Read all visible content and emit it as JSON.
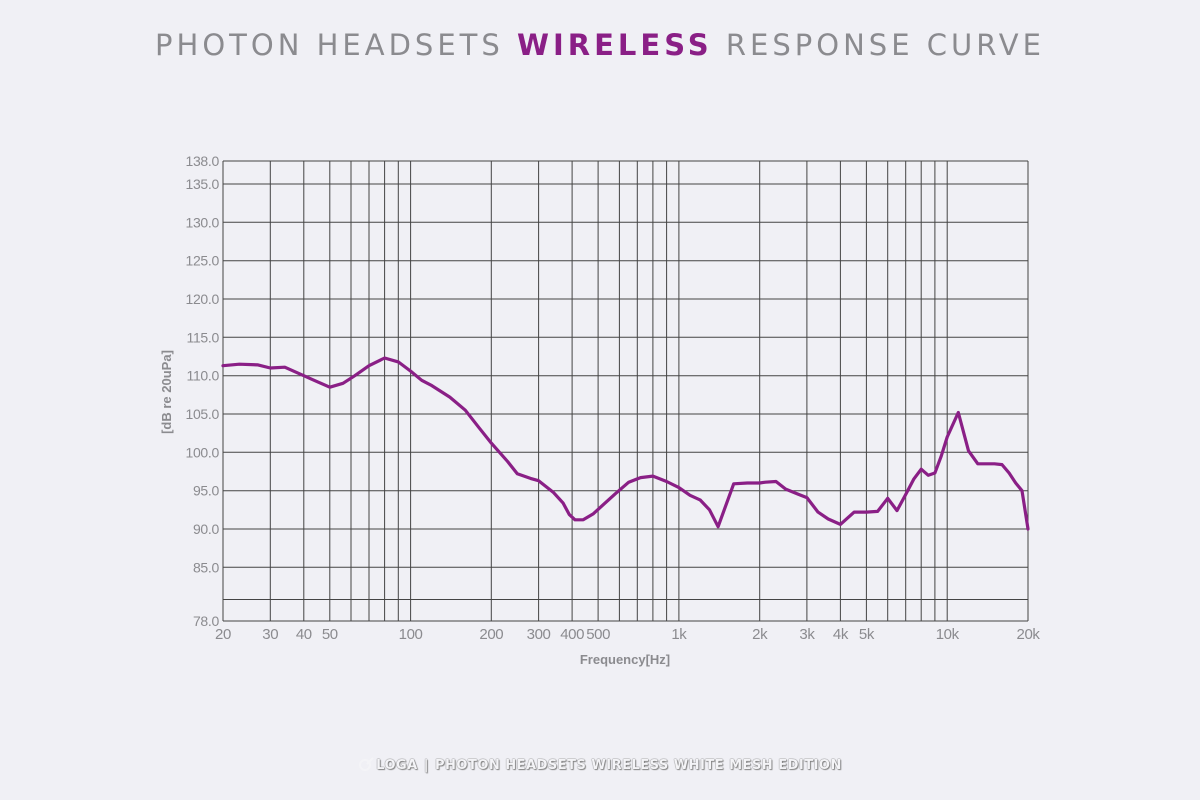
{
  "title": {
    "prefix": "PHOTON HEADSETS",
    "highlight": "WIRELESS",
    "suffix": "RESPONSE CURVE"
  },
  "footer": {
    "brand": "LOGA",
    "separator": "|",
    "text": "PHOTON HEADSETS WIRELESS WHITE MESH EDITION"
  },
  "colors": {
    "background": "#f0f0f5",
    "curve": "#8a1f86",
    "grid": "#444444",
    "text": "#8b8b8f"
  },
  "chart_data": {
    "type": "line",
    "title": "PHOTON HEADSETS WIRELESS RESPONSE CURVE",
    "xlabel": "Frequency[Hz]",
    "ylabel": "[dB re 20uPa]",
    "xscale": "log",
    "xlim": [
      20,
      20000
    ],
    "ylim": [
      78,
      138
    ],
    "grid": true,
    "x_ticks": [
      {
        "v": 20,
        "label": "20"
      },
      {
        "v": 30,
        "label": "30"
      },
      {
        "v": 40,
        "label": "40"
      },
      {
        "v": 50,
        "label": "50"
      },
      {
        "v": 100,
        "label": "100"
      },
      {
        "v": 200,
        "label": "200"
      },
      {
        "v": 300,
        "label": "300"
      },
      {
        "v": 400,
        "label": "400"
      },
      {
        "v": 500,
        "label": "500"
      },
      {
        "v": 1000,
        "label": "1k"
      },
      {
        "v": 2000,
        "label": "2k"
      },
      {
        "v": 3000,
        "label": "3k"
      },
      {
        "v": 4000,
        "label": "4k"
      },
      {
        "v": 5000,
        "label": "5k"
      },
      {
        "v": 10000,
        "label": "10k"
      },
      {
        "v": 20000,
        "label": "20k"
      }
    ],
    "y_ticks": [
      {
        "v": 78,
        "label": "78.0"
      },
      {
        "v": 85,
        "label": "85.0"
      },
      {
        "v": 90,
        "label": "90.0"
      },
      {
        "v": 95,
        "label": "95.0"
      },
      {
        "v": 100,
        "label": "100.0"
      },
      {
        "v": 105,
        "label": "105.0"
      },
      {
        "v": 110,
        "label": "110.0"
      },
      {
        "v": 115,
        "label": "115.0"
      },
      {
        "v": 120,
        "label": "120.0"
      },
      {
        "v": 125,
        "label": "125.0"
      },
      {
        "v": 130,
        "label": "130.0"
      },
      {
        "v": 135,
        "label": "135.0"
      },
      {
        "v": 138,
        "label": "138.0"
      }
    ],
    "extra_h_lines": [
      80.8
    ],
    "series": [
      {
        "name": "Photon Headsets Wireless",
        "x": [
          20,
          23,
          27,
          30,
          34,
          40,
          45,
          50,
          56,
          62,
          70,
          80,
          90,
          100,
          110,
          120,
          140,
          160,
          180,
          200,
          230,
          250,
          280,
          300,
          340,
          370,
          390,
          410,
          440,
          480,
          520,
          580,
          650,
          720,
          800,
          900,
          1000,
          1100,
          1200,
          1300,
          1400,
          1600,
          1800,
          2000,
          2100,
          2300,
          2500,
          2800,
          3000,
          3300,
          3600,
          4000,
          4500,
          5000,
          5500,
          6000,
          6500,
          7000,
          7500,
          8000,
          8500,
          9000,
          9500,
          10000,
          11000,
          12000,
          13000,
          14000,
          15000,
          16000,
          17000,
          18000,
          19000,
          20000
        ],
        "y": [
          111.3,
          111.5,
          111.4,
          111.0,
          111.1,
          110.0,
          109.2,
          108.5,
          109.0,
          110.0,
          111.3,
          112.3,
          111.8,
          110.6,
          109.4,
          108.7,
          107.2,
          105.5,
          103.2,
          101.2,
          98.8,
          97.2,
          96.6,
          96.3,
          94.8,
          93.4,
          91.9,
          91.2,
          91.2,
          92.0,
          93.1,
          94.6,
          96.1,
          96.7,
          96.9,
          96.2,
          95.4,
          94.4,
          93.8,
          92.5,
          90.3,
          95.9,
          96.0,
          96.0,
          96.1,
          96.2,
          95.2,
          94.5,
          94.1,
          92.2,
          91.3,
          90.6,
          92.2,
          92.2,
          92.3,
          94.0,
          92.4,
          94.5,
          96.5,
          97.8,
          97.0,
          97.3,
          99.5,
          102.0,
          105.2,
          100.2,
          98.5,
          98.5,
          98.5,
          98.4,
          97.3,
          96.0,
          95.0,
          90.0
        ]
      }
    ]
  }
}
